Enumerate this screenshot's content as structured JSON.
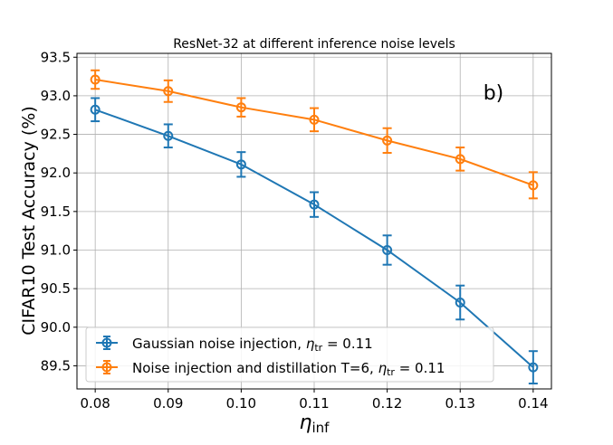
{
  "chart_data": {
    "type": "line",
    "title": "ResNet-32 at different inference noise levels",
    "annotation": "b)",
    "xlabel": {
      "symbol": "η",
      "sub": "inf"
    },
    "ylabel": "CIFAR10 Test Accuracy (%)",
    "x": [
      0.08,
      0.09,
      0.1,
      0.11,
      0.12,
      0.13,
      0.14
    ],
    "x_tick_labels": [
      "0.08",
      "0.09",
      "0.10",
      "0.11",
      "0.12",
      "0.13",
      "0.14"
    ],
    "y_tick_values": [
      89.5,
      90.0,
      90.5,
      91.0,
      91.5,
      92.0,
      92.5,
      93.0,
      93.5
    ],
    "y_tick_labels": [
      "89.5",
      "90.0",
      "90.5",
      "91.0",
      "91.5",
      "92.0",
      "92.5",
      "93.0",
      "93.5"
    ],
    "xlim": [
      0.0775,
      0.1425
    ],
    "ylim": [
      89.2,
      93.55
    ],
    "grid": true,
    "legend_position": "lower-left",
    "series": [
      {
        "name": {
          "text": "Gaussian noise injection, ",
          "symbol": "η",
          "sub": "tr",
          "rest": " = 0.11"
        },
        "color": "#1f77b4",
        "values": [
          92.82,
          92.48,
          92.11,
          91.59,
          91.0,
          90.32,
          89.48
        ],
        "errors": [
          0.15,
          0.15,
          0.16,
          0.16,
          0.19,
          0.22,
          0.21
        ]
      },
      {
        "name": {
          "text": "Noise injection and distillation T=6, ",
          "symbol": "η",
          "sub": "tr",
          "rest": " = 0.11"
        },
        "color": "#ff7f0e",
        "values": [
          93.21,
          93.06,
          92.85,
          92.69,
          92.42,
          92.18,
          91.84
        ],
        "errors": [
          0.12,
          0.14,
          0.12,
          0.15,
          0.16,
          0.15,
          0.17
        ]
      }
    ]
  }
}
